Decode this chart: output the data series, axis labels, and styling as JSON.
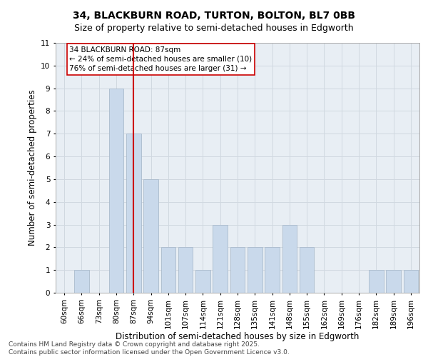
{
  "title_line1": "34, BLACKBURN ROAD, TURTON, BOLTON, BL7 0BB",
  "title_line2": "Size of property relative to semi-detached houses in Edgworth",
  "xlabel": "Distribution of semi-detached houses by size in Edgworth",
  "ylabel": "Number of semi-detached properties",
  "categories": [
    "60sqm",
    "66sqm",
    "73sqm",
    "80sqm",
    "87sqm",
    "94sqm",
    "101sqm",
    "107sqm",
    "114sqm",
    "121sqm",
    "128sqm",
    "135sqm",
    "141sqm",
    "148sqm",
    "155sqm",
    "162sqm",
    "169sqm",
    "176sqm",
    "182sqm",
    "189sqm",
    "196sqm"
  ],
  "values": [
    0,
    1,
    0,
    9,
    7,
    5,
    2,
    2,
    1,
    3,
    2,
    2,
    2,
    3,
    2,
    0,
    0,
    0,
    1,
    1,
    1
  ],
  "bar_color": "#c9d9eb",
  "bar_edge_color": "#aabbcc",
  "vline_x": 4,
  "vline_color": "#cc0000",
  "annotation_text": "34 BLACKBURN ROAD: 87sqm\n← 24% of semi-detached houses are smaller (10)\n76% of semi-detached houses are larger (31) →",
  "annotation_box_facecolor": "#ffffff",
  "annotation_box_edgecolor": "#cc0000",
  "ylim": [
    0,
    11
  ],
  "yticks": [
    0,
    1,
    2,
    3,
    4,
    5,
    6,
    7,
    8,
    9,
    10,
    11
  ],
  "grid_color": "#d0d8e0",
  "figure_bg": "#ffffff",
  "plot_bg": "#e8eef4",
  "footnote": "Contains HM Land Registry data © Crown copyright and database right 2025.\nContains public sector information licensed under the Open Government Licence v3.0.",
  "title_fontsize": 10,
  "subtitle_fontsize": 9,
  "axis_label_fontsize": 8.5,
  "tick_fontsize": 7.5,
  "annotation_fontsize": 7.5,
  "footnote_fontsize": 6.5
}
